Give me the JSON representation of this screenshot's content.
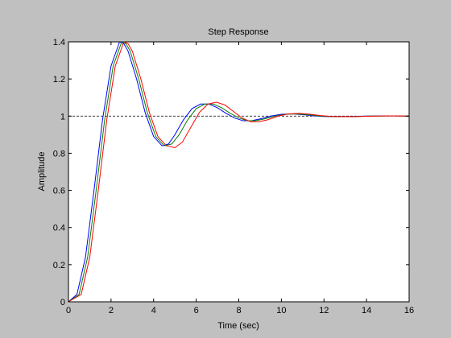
{
  "chart_data": {
    "type": "line",
    "title": "Step Response",
    "xlabel": "Time (sec)",
    "ylabel": "Amplitude",
    "xlim": [
      0,
      16
    ],
    "ylim": [
      0,
      1.4
    ],
    "xticks": [
      "0",
      "2",
      "4",
      "6",
      "8",
      "10",
      "12",
      "14",
      "16"
    ],
    "yticks": [
      "0",
      "0.2",
      "0.4",
      "0.6",
      "0.8",
      "1",
      "1.2",
      "1.4"
    ],
    "grid": false,
    "legend": "none",
    "reference_line": {
      "y": 1,
      "style": "dashed",
      "color": "#000000"
    },
    "series": [
      {
        "color": "#0000ff",
        "x": [
          0,
          0.4,
          0.8,
          1.2,
          1.6,
          2.0,
          2.4,
          2.6,
          2.8,
          3.2,
          3.6,
          4.0,
          4.4,
          4.7,
          5.0,
          5.4,
          5.8,
          6.2,
          6.6,
          7.0,
          7.4,
          7.8,
          8.2,
          8.6,
          9.0,
          9.5,
          10.0,
          10.5,
          11.0,
          11.5,
          12.0,
          13.0,
          14.0,
          15.0,
          16.0
        ],
        "y": [
          0,
          0.04,
          0.24,
          0.6,
          0.98,
          1.27,
          1.4,
          1.39,
          1.35,
          1.2,
          1.02,
          0.89,
          0.84,
          0.85,
          0.9,
          0.98,
          1.04,
          1.065,
          1.065,
          1.045,
          1.015,
          0.99,
          0.975,
          0.975,
          0.985,
          1.0,
          1.01,
          1.012,
          1.008,
          1.002,
          0.998,
          0.997,
          1.0,
          1.001,
          1.0
        ]
      },
      {
        "color": "#008000",
        "x": [
          0,
          0.5,
          0.9,
          1.3,
          1.7,
          2.1,
          2.5,
          2.7,
          2.9,
          3.3,
          3.7,
          4.1,
          4.5,
          4.85,
          5.2,
          5.6,
          6.0,
          6.4,
          6.8,
          7.2,
          7.6,
          8.0,
          8.4,
          8.8,
          9.2,
          9.7,
          10.2,
          10.7,
          11.2,
          11.7,
          12.2,
          13.2,
          14.2,
          15.2,
          16.0
        ],
        "y": [
          0,
          0.04,
          0.24,
          0.6,
          0.98,
          1.27,
          1.4,
          1.39,
          1.35,
          1.2,
          1.02,
          0.89,
          0.84,
          0.85,
          0.9,
          0.98,
          1.04,
          1.065,
          1.065,
          1.045,
          1.015,
          0.99,
          0.975,
          0.975,
          0.985,
          1.0,
          1.01,
          1.012,
          1.008,
          1.002,
          0.998,
          0.997,
          1.0,
          1.001,
          1.0
        ]
      },
      {
        "color": "#ff0000",
        "x": [
          0,
          0.6,
          1.0,
          1.4,
          1.8,
          2.2,
          2.6,
          2.8,
          3.0,
          3.4,
          3.8,
          4.2,
          4.6,
          5.0,
          5.35,
          5.75,
          6.15,
          6.55,
          6.95,
          7.35,
          7.75,
          8.15,
          8.55,
          8.95,
          9.35,
          9.85,
          10.35,
          10.85,
          11.35,
          11.85,
          12.35,
          13.35,
          14.35,
          15.35,
          16.0
        ],
        "y": [
          0,
          0.04,
          0.24,
          0.6,
          0.98,
          1.27,
          1.4,
          1.39,
          1.35,
          1.2,
          1.02,
          0.89,
          0.84,
          0.83,
          0.86,
          0.94,
          1.02,
          1.065,
          1.075,
          1.06,
          1.025,
          0.99,
          0.97,
          0.97,
          0.98,
          1.0,
          1.012,
          1.015,
          1.01,
          1.003,
          0.998,
          0.997,
          1.0,
          1.001,
          1.0
        ]
      }
    ]
  }
}
